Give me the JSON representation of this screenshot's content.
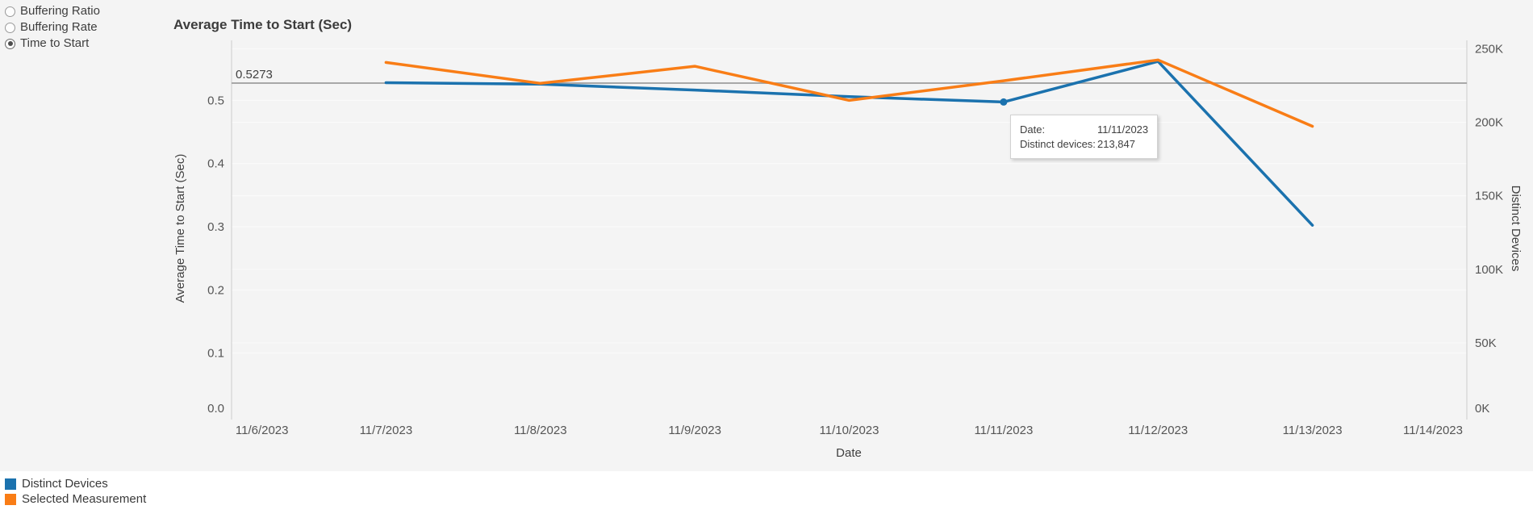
{
  "controls": {
    "radios": [
      {
        "label": "Buffering Ratio",
        "selected": false
      },
      {
        "label": "Buffering Rate",
        "selected": false
      },
      {
        "label": "Time to Start",
        "selected": true
      }
    ]
  },
  "header": {
    "title": "Average Time to Start (Sec)"
  },
  "tooltip": {
    "date_label": "Date:",
    "date_value": "11/11/2023",
    "devices_label": "Distinct devices:",
    "devices_value": "213,847"
  },
  "legend": [
    {
      "label": "Distinct Devices",
      "color": "#1b72ae"
    },
    {
      "label": "Selected Measurement",
      "color": "#f97d16"
    }
  ],
  "colors": {
    "blue_series": "#1b72ae",
    "orange_series": "#f97d16",
    "reference_line": "#a8a8a8",
    "axis_line": "#cccccc",
    "gridline": "#fbfbfb",
    "tick_text": "#555555",
    "axis_title_text": "#3f3f3f",
    "chart_background": "#f4f4f4"
  },
  "chart_data": {
    "type": "line",
    "title": "Average Time to Start (Sec)",
    "xlabel": "Date",
    "categories": [
      "11/6/2023",
      "11/7/2023",
      "11/8/2023",
      "11/9/2023",
      "11/10/2023",
      "11/11/2023",
      "11/12/2023",
      "11/13/2023",
      "11/14/2023"
    ],
    "left_axis": {
      "label": "Average Time to Start (Sec)",
      "ylim": [
        0,
        0.595
      ],
      "ticks": [
        {
          "v": 0.0,
          "label": "0.0"
        },
        {
          "v": 0.1,
          "label": "0.1"
        },
        {
          "v": 0.2,
          "label": "0.2"
        },
        {
          "v": 0.3,
          "label": "0.3"
        },
        {
          "v": 0.4,
          "label": "0.4"
        },
        {
          "v": 0.5,
          "label": "0.5"
        }
      ]
    },
    "right_axis": {
      "label": "Distinct Devices",
      "ylim": [
        0,
        255800
      ],
      "ticks": [
        {
          "v": 0,
          "label": "0K"
        },
        {
          "v": 50000,
          "label": "50K"
        },
        {
          "v": 100000,
          "label": "100K"
        },
        {
          "v": 150000,
          "label": "150K"
        },
        {
          "v": 200000,
          "label": "200K"
        },
        {
          "v": 250000,
          "label": "250K"
        }
      ]
    },
    "reference_line": {
      "axis": "left",
      "value": 0.5273,
      "label": "0.5273"
    },
    "series": [
      {
        "name": "Distinct Devices",
        "axis": "right",
        "color": "#1b72ae",
        "values": [
          null,
          227000,
          226000,
          222000,
          217500,
          213847,
          241500,
          130000,
          null
        ]
      },
      {
        "name": "Selected Measurement",
        "axis": "left",
        "color": "#f97d16",
        "values": [
          null,
          0.56,
          0.527,
          0.554,
          0.5,
          0.531,
          0.564,
          0.459,
          null
        ]
      }
    ],
    "highlight_point": {
      "series": "Distinct Devices",
      "category": "11/11/2023",
      "value": 213847
    },
    "grid": true,
    "legend_position": "bottom-left"
  }
}
